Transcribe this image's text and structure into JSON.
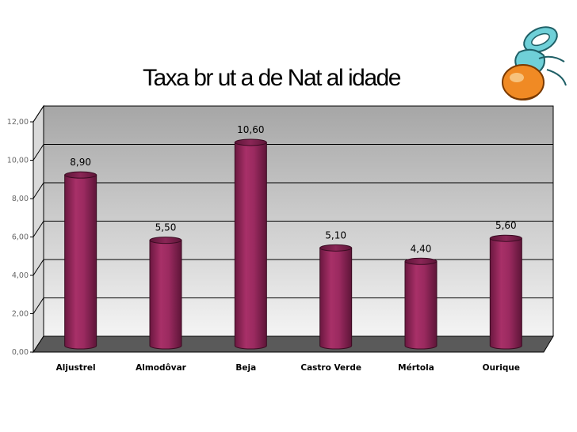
{
  "chart_data": {
    "type": "bar",
    "title": "Taxa br ut a de Nat al idade",
    "xlabel": "",
    "ylabel": "",
    "categories": [
      "Aljustrel",
      "Almodôvar",
      "Beja",
      "Castro Verde",
      "Mértola",
      "Ourique"
    ],
    "values": [
      8.9,
      5.5,
      10.6,
      5.1,
      4.4,
      5.6
    ],
    "value_labels": [
      "8,90",
      "5,50",
      "10,60",
      "5,10",
      "4,40",
      "5,60"
    ],
    "ylim": [
      0,
      12
    ],
    "yticks": [
      0,
      2,
      4,
      6,
      8,
      10,
      12
    ],
    "ytick_labels": [
      "0,00",
      "2,00",
      "4,00",
      "6,00",
      "8,00",
      "10,00",
      "12,00"
    ],
    "grid": true,
    "legend": "none",
    "style": "3d-cylinder",
    "colors": {
      "bar": "#9b2a60",
      "bar_dark": "#5e1538",
      "bar_top": "#7a1f4a",
      "wall_top": "#a6a6a6",
      "wall_bottom": "#f4f4f4",
      "floor": "#5a5a5a"
    }
  },
  "decoration": {
    "icon": "baby-pacifier-clipart-icon"
  }
}
